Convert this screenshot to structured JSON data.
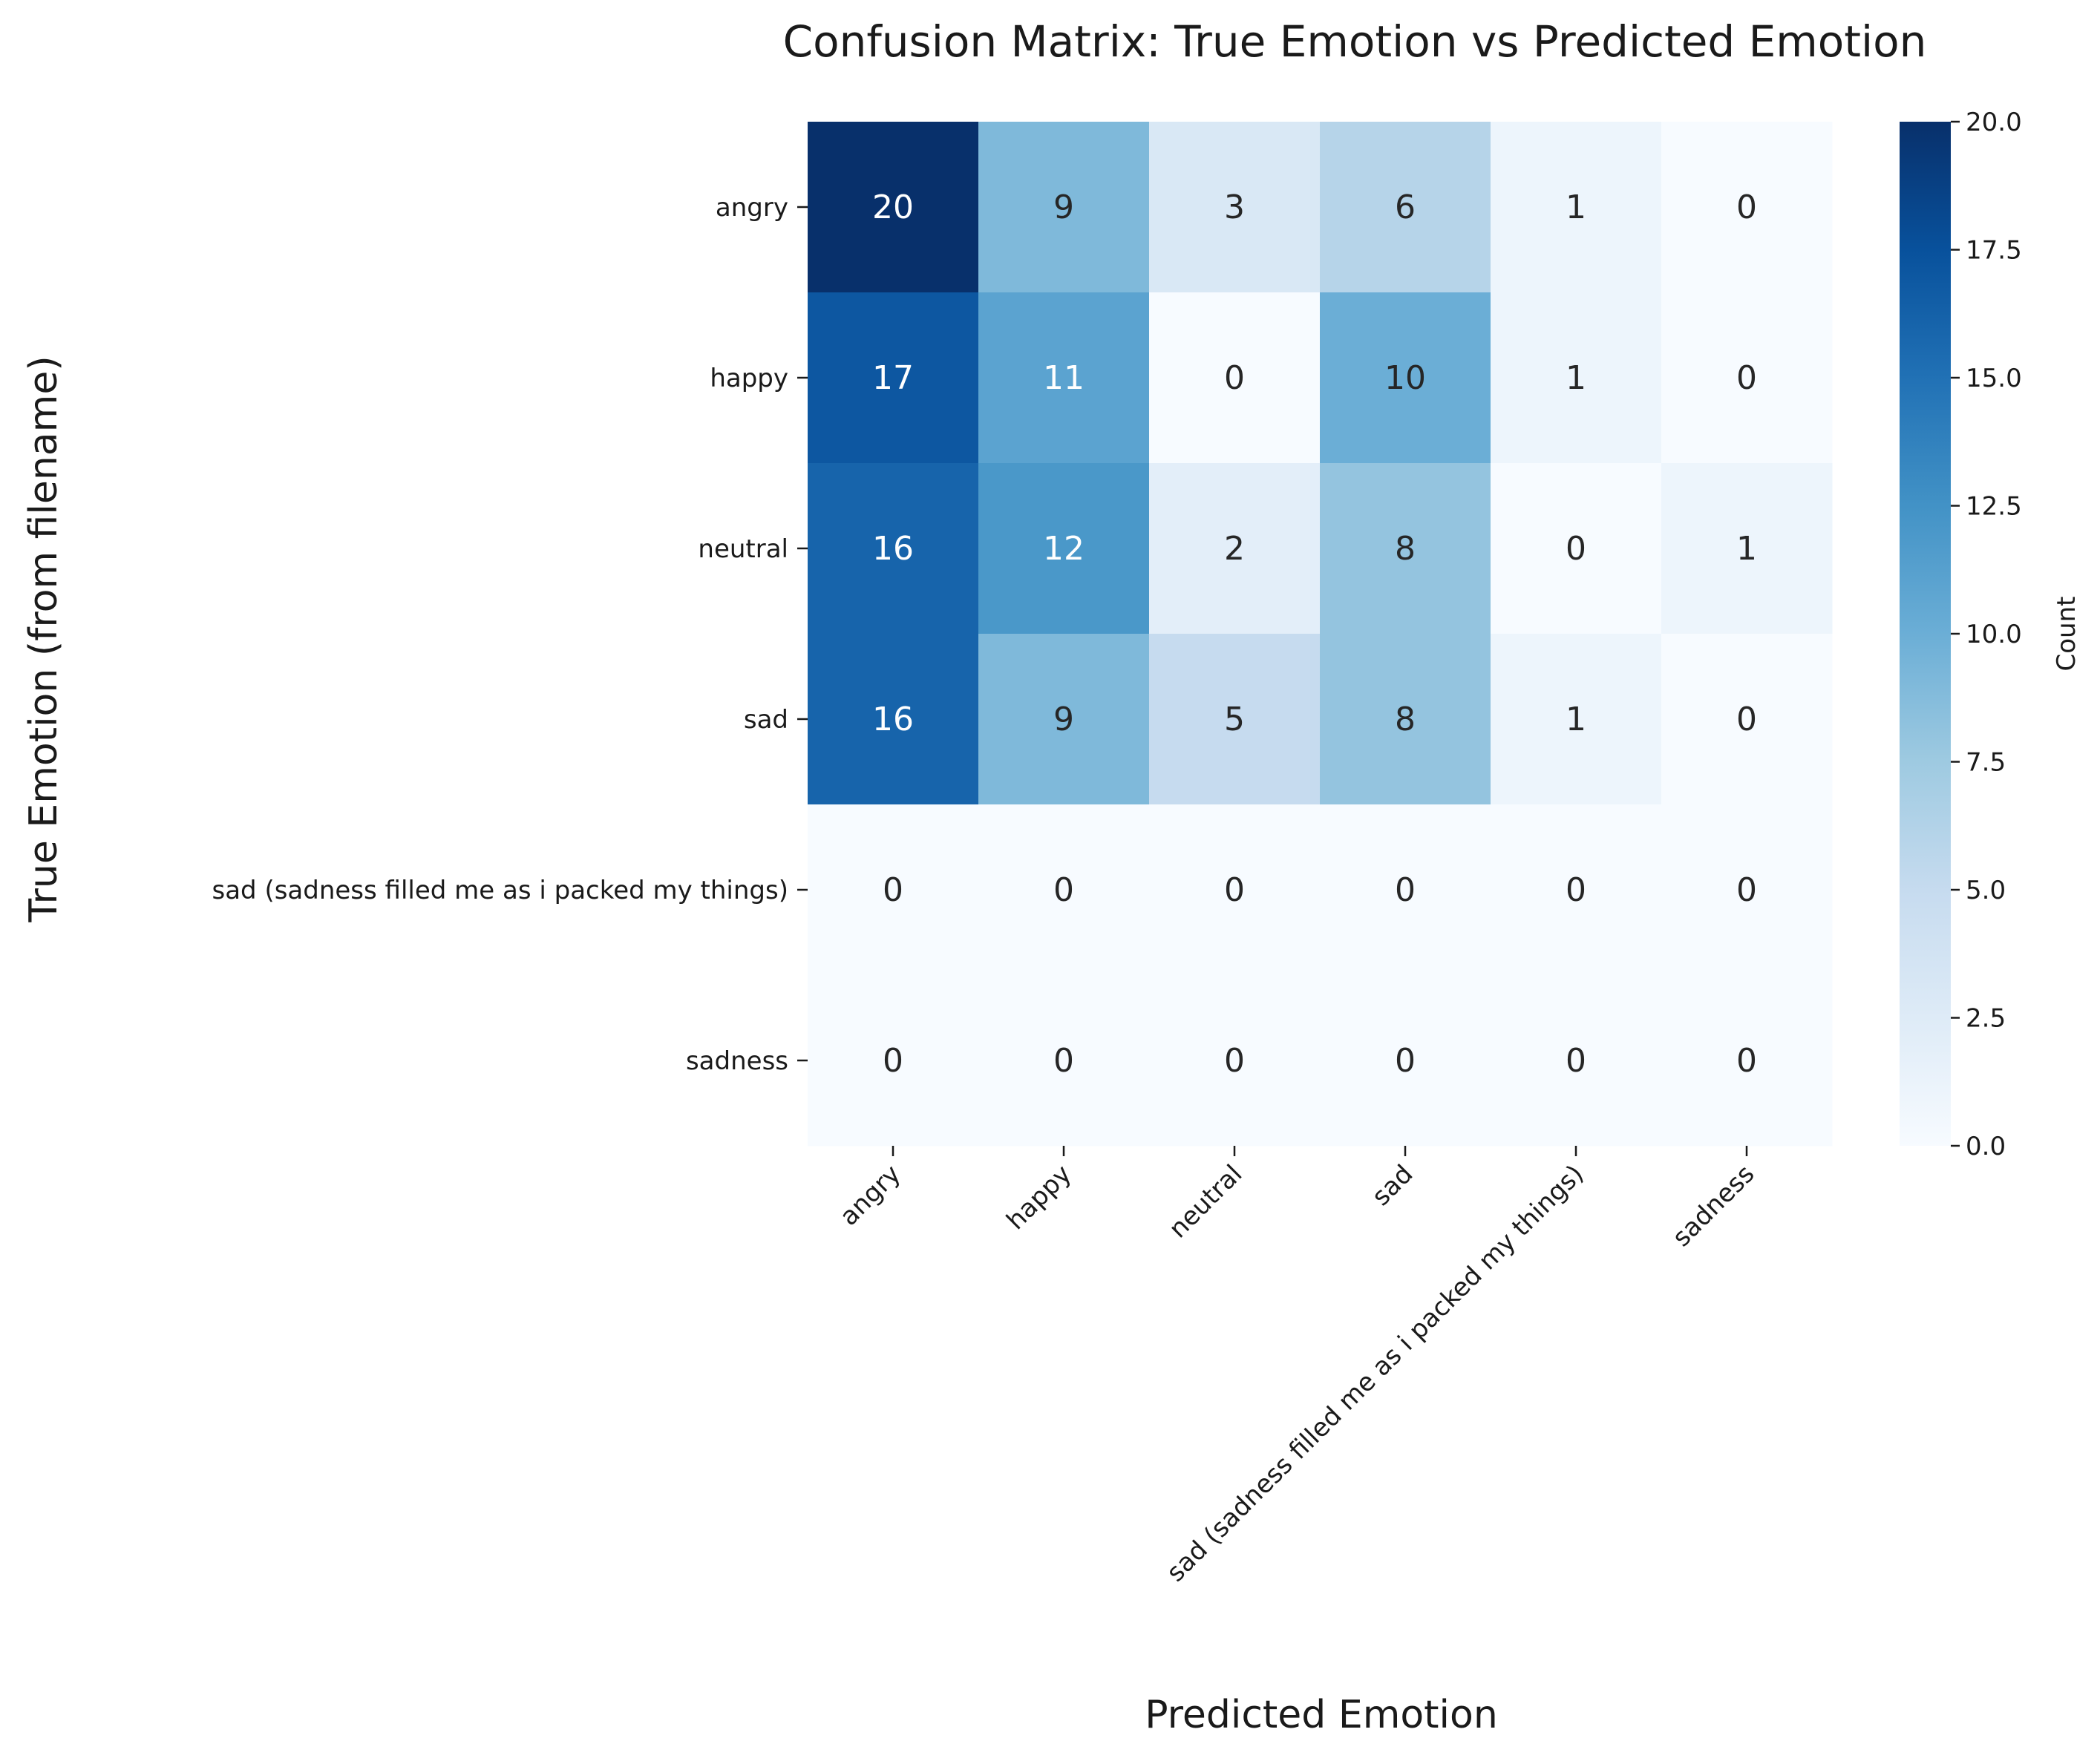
{
  "chart_data": {
    "type": "heatmap",
    "title": "Confusion Matrix: True Emotion vs Predicted Emotion",
    "xlabel": "Predicted Emotion",
    "ylabel": "True Emotion (from filename)",
    "x_categories": [
      "angry",
      "happy",
      "neutral",
      "sad",
      "sad (sadness filled me as i packed my things)",
      "sadness"
    ],
    "y_categories": [
      "angry",
      "happy",
      "neutral",
      "sad",
      "sad (sadness filled me as i packed my things)",
      "sadness"
    ],
    "values": [
      [
        20,
        9,
        3,
        6,
        1,
        0
      ],
      [
        17,
        11,
        0,
        10,
        1,
        0
      ],
      [
        16,
        12,
        2,
        8,
        0,
        1
      ],
      [
        16,
        9,
        5,
        8,
        1,
        0
      ],
      [
        0,
        0,
        0,
        0,
        0,
        0
      ],
      [
        0,
        0,
        0,
        0,
        0,
        0
      ]
    ],
    "colormap": "Blues",
    "colorbar": {
      "label": "Count",
      "range": [
        0.0,
        20.0
      ],
      "ticks": [
        "0.0",
        "2.5",
        "5.0",
        "7.5",
        "10.0",
        "12.5",
        "15.0",
        "17.5",
        "20.0"
      ]
    },
    "annotation_threshold": 10,
    "colors": {
      "text_dark": "#262626",
      "text_light": "#ffffff",
      "min": "#f7fbff",
      "max": "#08306b"
    }
  }
}
